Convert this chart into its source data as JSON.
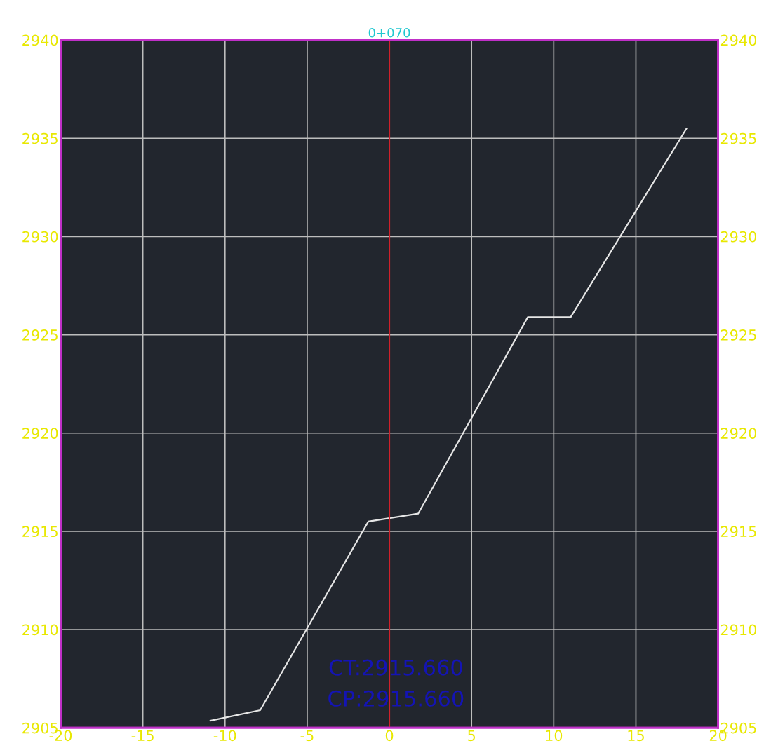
{
  "chart_data": {
    "type": "line",
    "title": "0+070",
    "series": [
      {
        "color": "#e6e6e6",
        "x": [
          -10.9,
          -7.86,
          -1.28,
          1.75,
          8.42,
          11.03,
          18.08
        ],
        "values": [
          2905.36,
          2905.9,
          2915.5,
          2915.9,
          2925.9,
          2925.9,
          2935.5
        ]
      }
    ],
    "xlim": [
      -20,
      20
    ],
    "xticks": [
      -20,
      -15,
      -10,
      -5,
      0,
      5,
      10,
      15,
      20
    ],
    "ylim": [
      2905,
      2940
    ],
    "yticks": [
      2905,
      2910,
      2915,
      2920,
      2925,
      2930,
      2935,
      2940
    ],
    "y2lim": [
      2905,
      2940
    ],
    "y2ticks": [
      2905,
      2910,
      2915,
      2920,
      2925,
      2930,
      2935,
      2940
    ],
    "ref_lines": [
      {
        "axis": "x",
        "value": 0,
        "color": "#d0202a"
      }
    ],
    "annotations": [
      "CT:2915.660",
      "CP:2915.660"
    ],
    "grid": true,
    "marker": "none",
    "line_style": "solid"
  }
}
